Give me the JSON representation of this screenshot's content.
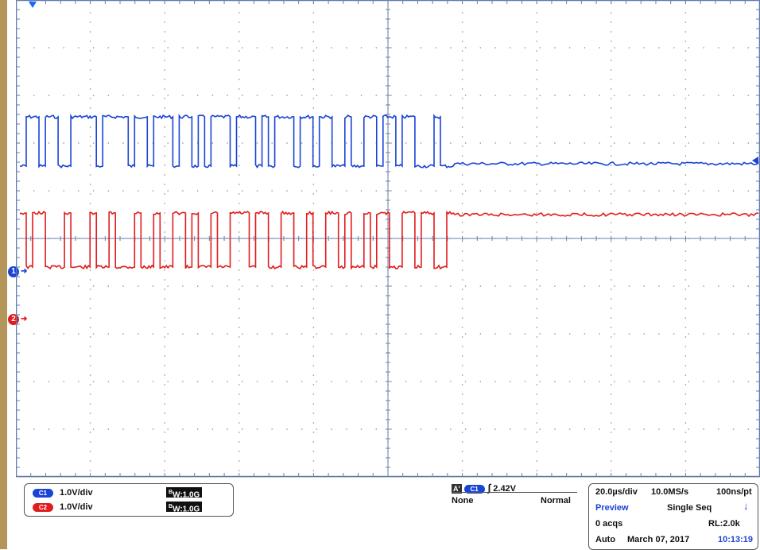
{
  "markers": {
    "ch1": "1",
    "ch2": "2"
  },
  "vertical": {
    "ch1": {
      "pill": "C1",
      "scale": "1.0V/div",
      "bw_prefix": "B",
      "bw_value": "W:1.0G"
    },
    "ch2": {
      "pill": "C2",
      "scale": "1.0V/div",
      "bw_prefix": "B",
      "bw_value": "W:1.0G"
    }
  },
  "trigger": {
    "icon": "A'",
    "source": "C1",
    "slope_icon": "rising-edge-icon",
    "level": "2.42V",
    "coupling": "None",
    "mode": "Normal"
  },
  "acquisition": {
    "timebase": "20.0µs/div",
    "sample_rate": "10.0MS/s",
    "resolution": "100ns/pt",
    "state": "Preview",
    "run_mode": "Single Seq",
    "acqs": "0 acqs",
    "record_length": "RL:2.0k",
    "trigger_type": "Auto",
    "date": "March 07, 2017",
    "time": "10:13:19"
  },
  "colors": {
    "ch1": "#1a44d6",
    "ch2": "#e21c1c",
    "grid": "#8a8a8a",
    "rail": "#b5965a"
  }
}
